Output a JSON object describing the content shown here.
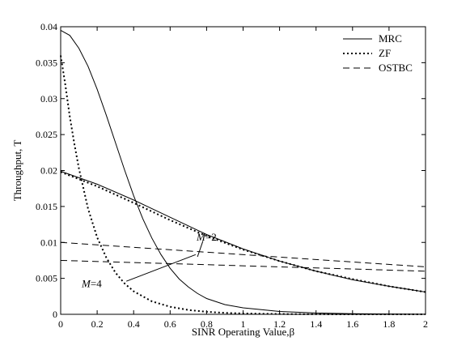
{
  "chart_data": {
    "type": "line",
    "title": "",
    "xlabel": "SINR Operating Value,β",
    "ylabel": "Throughput, T",
    "xlim": [
      0,
      2
    ],
    "ylim": [
      0,
      0.04
    ],
    "xticks": [
      0,
      0.2,
      0.4,
      0.6,
      0.8,
      1,
      1.2,
      1.4,
      1.6,
      1.8,
      2
    ],
    "xtick_labels": [
      "0",
      "0.2",
      "0.4",
      "0.6",
      "0.8",
      "1",
      "1.2",
      "1.4",
      "1.6",
      "1.8",
      "2"
    ],
    "yticks": [
      0,
      0.005,
      0.01,
      0.015,
      0.02,
      0.025,
      0.03,
      0.035,
      0.04
    ],
    "ytick_labels": [
      "0",
      "0.005",
      "0.01",
      "0.015",
      "0.02",
      "0.025",
      "0.03",
      "0.035",
      "0.04"
    ],
    "grid": false,
    "legend_position": "top-right",
    "series": [
      {
        "name": "MRC",
        "style": "solid",
        "group": "M=4",
        "x": [
          0,
          0.05,
          0.1,
          0.15,
          0.2,
          0.25,
          0.3,
          0.35,
          0.4,
          0.45,
          0.5,
          0.55,
          0.6,
          0.65,
          0.7,
          0.75,
          0.8,
          0.9,
          1.0,
          1.2,
          1.4,
          1.6,
          1.8,
          2.0
        ],
        "y": [
          0.0395,
          0.0388,
          0.037,
          0.0345,
          0.0313,
          0.0277,
          0.0239,
          0.0201,
          0.0165,
          0.0133,
          0.0106,
          0.0083,
          0.0064,
          0.0049,
          0.0038,
          0.0029,
          0.0022,
          0.00135,
          0.0009,
          0.0004,
          0.00018,
          8e-05,
          4e-05,
          2e-05
        ]
      },
      {
        "name": "ZF",
        "style": "dotted",
        "group": "M=4",
        "x": [
          0,
          0.025,
          0.05,
          0.075,
          0.1,
          0.15,
          0.2,
          0.25,
          0.3,
          0.35,
          0.4,
          0.5,
          0.6,
          0.7,
          0.8,
          0.9,
          1.0,
          1.2,
          1.4,
          1.6,
          1.8,
          2.0
        ],
        "y": [
          0.036,
          0.032,
          0.0275,
          0.0237,
          0.0203,
          0.0147,
          0.0107,
          0.0079,
          0.0058,
          0.0043,
          0.0032,
          0.0018,
          0.00105,
          0.0006,
          0.00035,
          0.0002,
          0.00012,
          4e-05,
          1e-05,
          0,
          0,
          0
        ]
      },
      {
        "name": "MRC",
        "style": "solid",
        "group": "M=2",
        "x": [
          0,
          0.2,
          0.4,
          0.6,
          0.8,
          1.0,
          1.2,
          1.4,
          1.6,
          1.8,
          2.0
        ],
        "y": [
          0.0199,
          0.0181,
          0.0159,
          0.0135,
          0.0111,
          0.0091,
          0.0074,
          0.006,
          0.0048,
          0.0039,
          0.0031
        ]
      },
      {
        "name": "ZF",
        "style": "dotted",
        "group": "M=2",
        "x": [
          0,
          0.2,
          0.4,
          0.6,
          0.8,
          1.0,
          1.2,
          1.4,
          1.6,
          1.8,
          2.0
        ],
        "y": [
          0.0198,
          0.0178,
          0.0155,
          0.0131,
          0.0109,
          0.009,
          0.0074,
          0.006,
          0.0049,
          0.0039,
          0.0031
        ]
      },
      {
        "name": "OSTBC",
        "style": "dashed",
        "group": "M=4",
        "x": [
          0,
          2
        ],
        "y": [
          0.01,
          0.0066
        ]
      },
      {
        "name": "OSTBC",
        "style": "dashed",
        "group": "M=2",
        "x": [
          0,
          2
        ],
        "y": [
          0.0075,
          0.006
        ]
      }
    ],
    "legend": [
      {
        "label": "MRC",
        "style": "solid"
      },
      {
        "label": "ZF",
        "style": "dotted"
      },
      {
        "label": "OSTBC",
        "style": "dashed"
      }
    ],
    "annotations": [
      {
        "label": "M=2",
        "x": 0.8,
        "y": 0.0107,
        "pointer": [
          [
            0.78,
            0.0102
          ],
          [
            0.75,
            0.008
          ]
        ]
      },
      {
        "label": "M=4",
        "x": 0.25,
        "y": 0.0042,
        "pointer": [
          [
            0.36,
            0.0046
          ],
          [
            0.74,
            0.0083
          ]
        ]
      }
    ]
  }
}
